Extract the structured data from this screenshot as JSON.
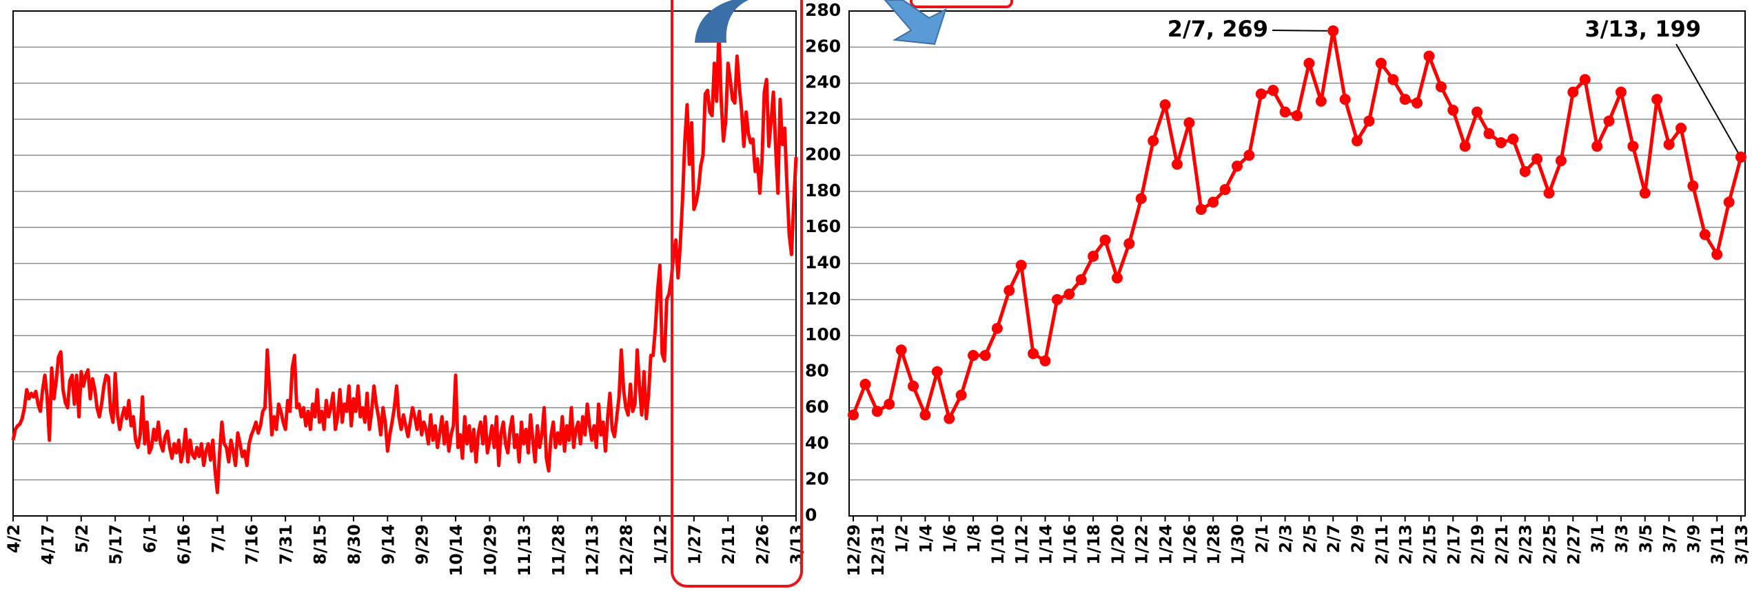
{
  "chart_data": [
    {
      "type": "line",
      "color": "#ff0000",
      "grid": true,
      "ylim": [
        0,
        280
      ],
      "markers": false,
      "categories": [
        "4/2",
        null,
        null,
        null,
        null,
        null,
        null,
        null,
        null,
        null,
        null,
        null,
        null,
        null,
        null,
        "4/17",
        null,
        null,
        null,
        null,
        null,
        null,
        null,
        null,
        null,
        null,
        null,
        null,
        null,
        null,
        "5/2",
        null,
        null,
        null,
        null,
        null,
        null,
        null,
        null,
        null,
        null,
        null,
        null,
        null,
        null,
        "5/17",
        null,
        null,
        null,
        null,
        null,
        null,
        null,
        null,
        null,
        null,
        null,
        null,
        null,
        null,
        "6/1",
        null,
        null,
        null,
        null,
        null,
        null,
        null,
        null,
        null,
        null,
        null,
        null,
        null,
        null,
        "6/16",
        null,
        null,
        null,
        null,
        null,
        null,
        null,
        null,
        null,
        null,
        null,
        null,
        null,
        null,
        "7/1",
        null,
        null,
        null,
        null,
        null,
        null,
        null,
        null,
        null,
        null,
        null,
        null,
        null,
        null,
        "7/16",
        null,
        null,
        null,
        null,
        null,
        null,
        null,
        null,
        null,
        null,
        null,
        null,
        null,
        null,
        "7/31",
        null,
        null,
        null,
        null,
        null,
        null,
        null,
        null,
        null,
        null,
        null,
        null,
        null,
        null,
        "8/15",
        null,
        null,
        null,
        null,
        null,
        null,
        null,
        null,
        null,
        null,
        null,
        null,
        null,
        null,
        "8/30",
        null,
        null,
        null,
        null,
        null,
        null,
        null,
        null,
        null,
        null,
        null,
        null,
        null,
        null,
        "9/14",
        null,
        null,
        null,
        null,
        null,
        null,
        null,
        null,
        null,
        null,
        null,
        null,
        null,
        null,
        "9/29",
        null,
        null,
        null,
        null,
        null,
        null,
        null,
        null,
        null,
        null,
        null,
        null,
        null,
        null,
        "10/14",
        null,
        null,
        null,
        null,
        null,
        null,
        null,
        null,
        null,
        null,
        null,
        null,
        null,
        null,
        "10/29",
        null,
        null,
        null,
        null,
        null,
        null,
        null,
        null,
        null,
        null,
        null,
        null,
        null,
        null,
        "11/13",
        null,
        null,
        null,
        null,
        null,
        null,
        null,
        null,
        null,
        null,
        null,
        null,
        null,
        null,
        "11/28",
        null,
        null,
        null,
        null,
        null,
        null,
        null,
        null,
        null,
        null,
        null,
        null,
        null,
        null,
        "12/13",
        null,
        null,
        null,
        null,
        null,
        null,
        null,
        null,
        null,
        null,
        null,
        null,
        null,
        null,
        "12/28",
        null,
        null,
        null,
        null,
        null,
        null,
        null,
        null,
        null,
        null,
        null,
        null,
        null,
        null,
        "1/12",
        null,
        null,
        null,
        null,
        null,
        null,
        null,
        null,
        null,
        null,
        null,
        null,
        null,
        null,
        "1/27",
        null,
        null,
        null,
        null,
        null,
        null,
        null,
        null,
        null,
        null,
        null,
        null,
        null,
        null,
        "2/11",
        null,
        null,
        null,
        null,
        null,
        null,
        null,
        null,
        null,
        null,
        null,
        null,
        null,
        null,
        "2/26",
        null,
        null,
        null,
        null,
        null,
        null,
        null,
        null,
        null,
        null,
        null,
        null,
        null,
        null,
        "3/13"
      ],
      "values": [
        42,
        48,
        50,
        51,
        54,
        60,
        70,
        65,
        68,
        66,
        69,
        62,
        58,
        70,
        78,
        66,
        42,
        82,
        65,
        75,
        88,
        91,
        70,
        63,
        60,
        75,
        78,
        62,
        78,
        55,
        80,
        72,
        78,
        81,
        65,
        76,
        70,
        60,
        55,
        62,
        72,
        78,
        77,
        58,
        52,
        79,
        56,
        48,
        55,
        60,
        54,
        64,
        50,
        55,
        42,
        38,
        45,
        66,
        40,
        52,
        35,
        38,
        48,
        42,
        52,
        40,
        36,
        44,
        47,
        38,
        32,
        40,
        35,
        42,
        30,
        36,
        48,
        30,
        42,
        34,
        32,
        38,
        33,
        40,
        28,
        36,
        40,
        31,
        42,
        25,
        13,
        35,
        52,
        40,
        38,
        30,
        42,
        36,
        28,
        46,
        40,
        33,
        36,
        28,
        40,
        45,
        48,
        52,
        46,
        50,
        58,
        60,
        92,
        70,
        45,
        55,
        48,
        62,
        58,
        52,
        48,
        64,
        58,
        82,
        89,
        60,
        62,
        55,
        60,
        50,
        58,
        48,
        62,
        55,
        70,
        52,
        58,
        48,
        64,
        55,
        60,
        68,
        48,
        55,
        70,
        52,
        62,
        58,
        72,
        50,
        65,
        58,
        72,
        55,
        60,
        52,
        68,
        48,
        58,
        72,
        62,
        55,
        45,
        60,
        52,
        36,
        45,
        52,
        60,
        72,
        55,
        48,
        56,
        50,
        44,
        52,
        60,
        55,
        48,
        58,
        45,
        52,
        48,
        40,
        56,
        42,
        50,
        38,
        46,
        55,
        40,
        52,
        36,
        45,
        50,
        78,
        38,
        45,
        32,
        55,
        40,
        50,
        36,
        48,
        30,
        46,
        52,
        40,
        55,
        35,
        42,
        50,
        38,
        55,
        28,
        46,
        52,
        40,
        35,
        48,
        55,
        38,
        45,
        30,
        52,
        40,
        48,
        35,
        56,
        42,
        30,
        50,
        38,
        45,
        60,
        32,
        25,
        44,
        52,
        38,
        46,
        40,
        55,
        36,
        50,
        42,
        60,
        38,
        48,
        52,
        40,
        55,
        45,
        62,
        50,
        42,
        50,
        38,
        62,
        45,
        52,
        36,
        55,
        68,
        48,
        44,
        55,
        66,
        92,
        70,
        60,
        56,
        73,
        58,
        62,
        92,
        72,
        56,
        80,
        54,
        67,
        89,
        89,
        104,
        125,
        139,
        90,
        86,
        120,
        123,
        131,
        144,
        153,
        132,
        151,
        176,
        208,
        228,
        195,
        218,
        170,
        174,
        181,
        194,
        200,
        234,
        236,
        224,
        222,
        251,
        230,
        269,
        231,
        208,
        219,
        251,
        242,
        231,
        229,
        255,
        238,
        225,
        205,
        224,
        212,
        207,
        209,
        191,
        198,
        179,
        197,
        235,
        242,
        205,
        219,
        235,
        205,
        179,
        231,
        206,
        215,
        183,
        156,
        145,
        174,
        199
      ]
    },
    {
      "type": "line",
      "color": "#ff0000",
      "grid": true,
      "markers": true,
      "ylim": [
        0,
        280
      ],
      "yticks": [
        0,
        20,
        40,
        60,
        80,
        100,
        120,
        140,
        160,
        180,
        200,
        220,
        240,
        260,
        280
      ],
      "categories": [
        "12/29",
        null,
        "12/31",
        null,
        "1/2",
        null,
        "1/4",
        null,
        "1/6",
        null,
        "1/8",
        null,
        "1/10",
        null,
        "1/12",
        null,
        "1/14",
        null,
        "1/16",
        null,
        "1/18",
        null,
        "1/20",
        null,
        "1/22",
        null,
        "1/24",
        null,
        "1/26",
        null,
        "1/28",
        null,
        "1/30",
        null,
        "2/1",
        null,
        "2/3",
        null,
        "2/5",
        null,
        "2/7",
        null,
        "2/9",
        null,
        "2/11",
        null,
        "2/13",
        null,
        "2/15",
        null,
        "2/17",
        null,
        "2/19",
        null,
        "2/21",
        null,
        "2/23",
        null,
        "2/25",
        null,
        "2/27",
        null,
        "3/1",
        null,
        "3/3",
        null,
        "3/5",
        null,
        "3/7",
        null,
        "3/9",
        null,
        "3/11",
        null,
        "3/13"
      ],
      "values": [
        56,
        73,
        58,
        62,
        92,
        72,
        56,
        80,
        54,
        67,
        89,
        89,
        104,
        125,
        139,
        90,
        86,
        120,
        123,
        131,
        144,
        153,
        132,
        151,
        176,
        208,
        228,
        195,
        218,
        170,
        174,
        181,
        194,
        200,
        234,
        236,
        224,
        222,
        251,
        230,
        269,
        231,
        208,
        219,
        251,
        242,
        231,
        229,
        255,
        238,
        225,
        205,
        224,
        212,
        207,
        209,
        191,
        198,
        179,
        197,
        235,
        242,
        205,
        219,
        235,
        205,
        179,
        231,
        206,
        215,
        183,
        156,
        145,
        174,
        199
      ],
      "annotations": [
        "2/7, 269",
        "3/13, 199"
      ]
    }
  ]
}
